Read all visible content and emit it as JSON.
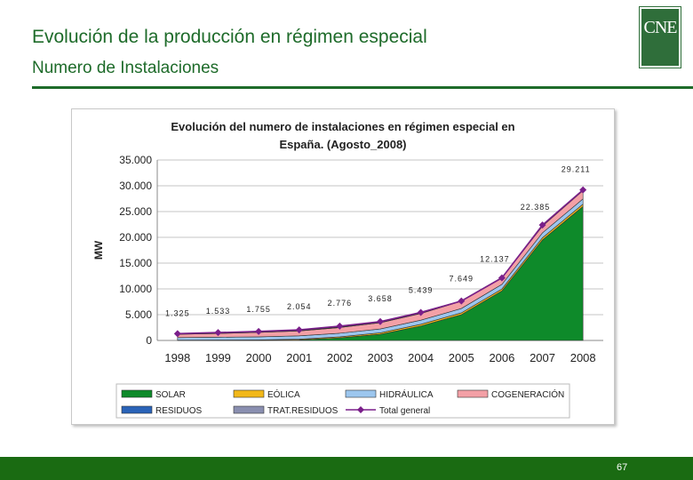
{
  "header": {
    "title": "Evolución de la producción en régimen especial",
    "subtitle": "Numero de Instalaciones",
    "logo_text": "CNE"
  },
  "footer": {
    "page_number": "67"
  },
  "colors": {
    "brand_green": "#1e6b2a",
    "footer_green": "#1a6b12",
    "solar": "#0e8a2a",
    "eolica": "#f2b81a",
    "hidraulica": "#9cc6ee",
    "cogeneracion": "#f3a0a6",
    "residuos": "#2a63b8",
    "trat_residuos": "#8a8fb0",
    "total": "#7a1f8a"
  },
  "chart_data": {
    "type": "area",
    "title": "Evolución del numero de instalaciones en régimen especial en España. (Agosto_2008)",
    "ylabel": "MW",
    "xlabel": "",
    "ylim": [
      0,
      35000
    ],
    "y_ticks": [
      "0",
      "5.000",
      "10.000",
      "15.000",
      "20.000",
      "25.000",
      "30.000",
      "35.000"
    ],
    "categories": [
      "1998",
      "1999",
      "2000",
      "2001",
      "2002",
      "2003",
      "2004",
      "2005",
      "2006",
      "2007",
      "2008"
    ],
    "grid": true,
    "legend_position": "bottom",
    "series": [
      {
        "name": "SOLAR",
        "values": [
          0,
          0,
          0,
          100,
          500,
          1200,
          2800,
          5000,
          9600,
          19500,
          26000
        ]
      },
      {
        "name": "EÓLICA",
        "values": [
          50,
          80,
          100,
          150,
          200,
          280,
          330,
          350,
          380,
          420,
          450
        ]
      },
      {
        "name": "HIDRÁULICA",
        "values": [
          500,
          550,
          600,
          650,
          700,
          750,
          800,
          850,
          900,
          950,
          1000
        ]
      },
      {
        "name": "COGENERACIÓN",
        "values": [
          650,
          720,
          850,
          950,
          1100,
          1200,
          1300,
          1400,
          1200,
          1300,
          1600
        ]
      },
      {
        "name": "RESIDUOS",
        "values": [
          50,
          60,
          70,
          80,
          90,
          100,
          100,
          100,
          110,
          110,
          120
        ]
      },
      {
        "name": "TRAT.RESIDUOS",
        "values": [
          0,
          0,
          10,
          20,
          30,
          40,
          40,
          40,
          40,
          40,
          40
        ]
      },
      {
        "name": "Total general",
        "values": [
          1325,
          1533,
          1755,
          2054,
          2776,
          3658,
          5439,
          7649,
          12137,
          22385,
          29211
        ]
      }
    ],
    "data_labels": [
      "1.325",
      "1.533",
      "1.755",
      "2.054",
      "2.776",
      "3.658",
      "5.439",
      "7.649",
      "12.137",
      "22.385",
      "29.211"
    ]
  }
}
